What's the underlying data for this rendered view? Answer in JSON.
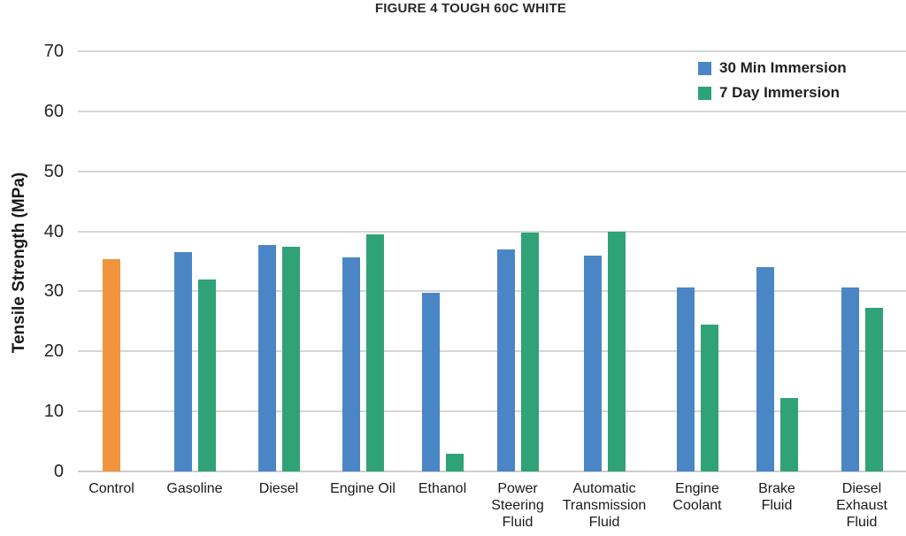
{
  "title": "FIGURE 4 TOUGH 60C WHITE",
  "y_axis": {
    "label": "Tensile Strength (MPa)",
    "tick_labels": [
      "0",
      "10",
      "20",
      "30",
      "40",
      "50",
      "60",
      "70"
    ]
  },
  "legend": {
    "items": [
      {
        "label": "30 Min Immersion",
        "color": "#4a86c6"
      },
      {
        "label": "7 Day Immersion",
        "color": "#30a277"
      }
    ]
  },
  "colors": {
    "control_orange": "#f0943e",
    "series_blue": "#4a86c6",
    "series_green": "#30a277",
    "gridline": "#d6d6d6",
    "text": "#262626"
  },
  "chart_data": {
    "type": "bar",
    "title": "FIGURE 4 TOUGH 60C WHITE",
    "xlabel": "",
    "ylabel": "Tensile Strength (MPa)",
    "ylim": [
      0,
      70
    ],
    "yticks": [
      0,
      10,
      20,
      30,
      40,
      50,
      60,
      70
    ],
    "grid": true,
    "legend_position": "top-right",
    "categories": [
      "Control",
      "Gasoline",
      "Diesel",
      "Engine Oil",
      "Ethanol",
      "Power Steering Fluid",
      "Automatic Transmission Fluid",
      "Engine Coolant",
      "Brake Fluid",
      "Diesel Exhaust Fluid"
    ],
    "category_label_lines": [
      [
        "Control"
      ],
      [
        "Gasoline"
      ],
      [
        "Diesel"
      ],
      [
        "Engine Oil"
      ],
      [
        "Ethanol"
      ],
      [
        "Power",
        "Steering",
        "Fluid"
      ],
      [
        "Automatic",
        "Transmission",
        "Fluid"
      ],
      [
        "Engine",
        "Coolant"
      ],
      [
        "Brake",
        "Fluid"
      ],
      [
        "Diesel",
        "Exhaust",
        "Fluid"
      ]
    ],
    "series": [
      {
        "name": "Control",
        "color": "#f0943e",
        "in_legend": false,
        "values": [
          35.3,
          null,
          null,
          null,
          null,
          null,
          null,
          null,
          null,
          null
        ]
      },
      {
        "name": "30 Min Immersion",
        "color": "#4a86c6",
        "in_legend": true,
        "values": [
          null,
          36.6,
          37.7,
          35.6,
          29.7,
          37.0,
          35.9,
          30.6,
          34.0,
          30.7
        ]
      },
      {
        "name": "7 Day Immersion",
        "color": "#30a277",
        "in_legend": true,
        "values": [
          null,
          32.0,
          37.4,
          39.5,
          3.0,
          39.8,
          40.0,
          24.5,
          12.2,
          27.2
        ]
      }
    ]
  }
}
